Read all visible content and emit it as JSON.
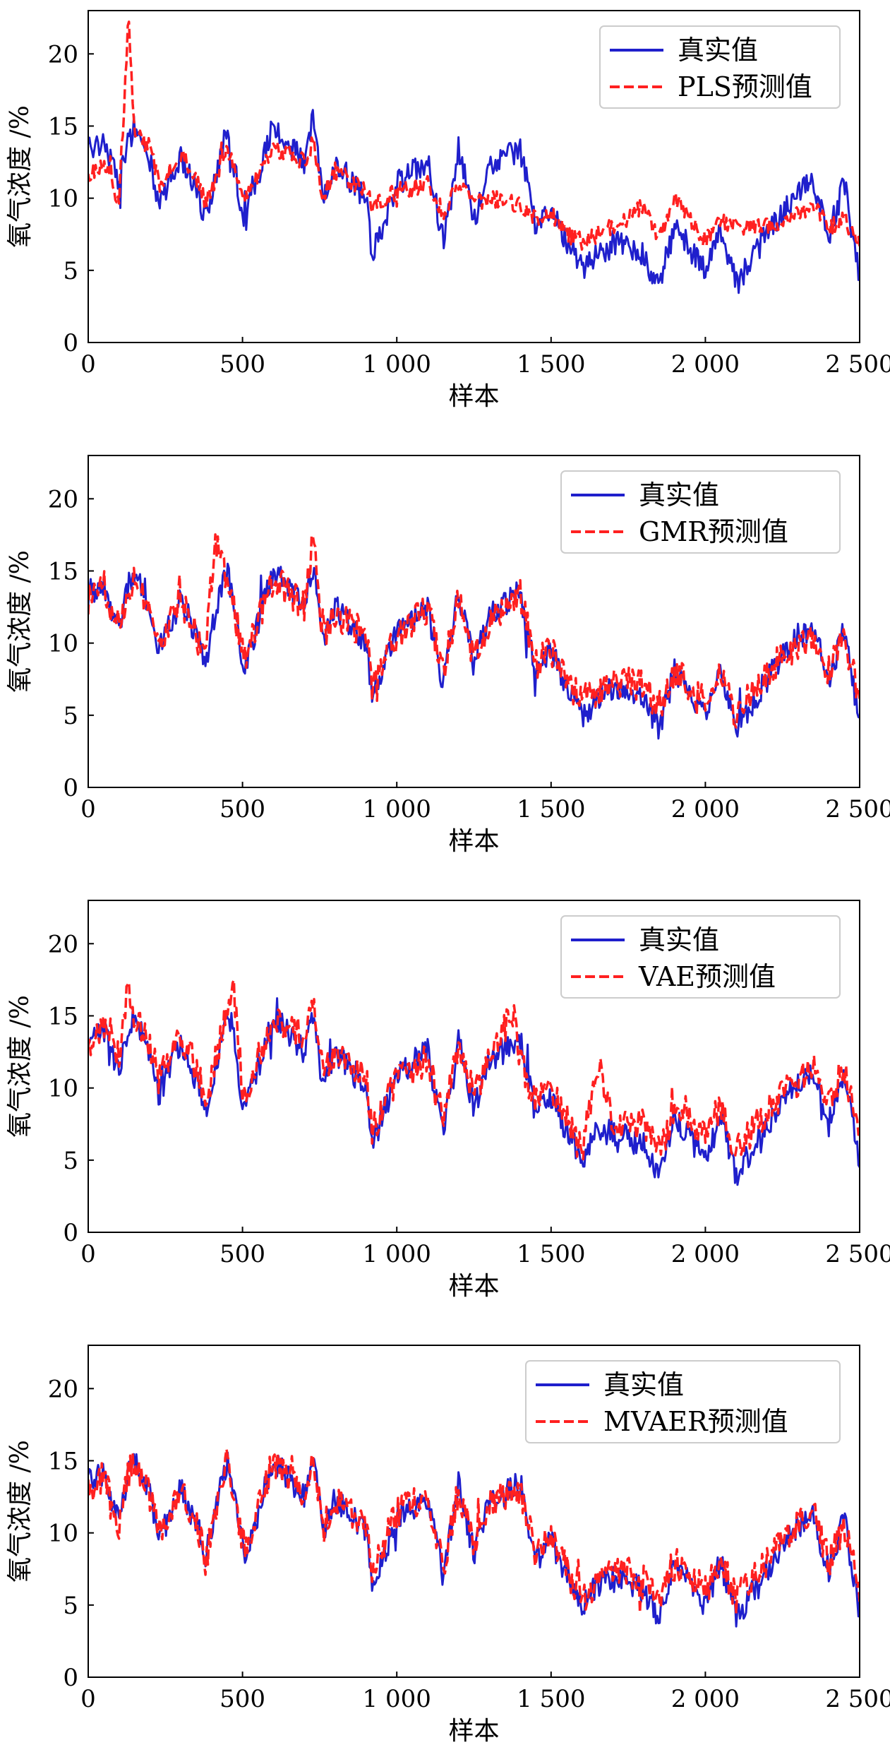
{
  "figure": {
    "panels": [
      {
        "legend_true": "真实值",
        "legend_pred": "PLS预测值"
      },
      {
        "legend_true": "真实值",
        "legend_pred": "GMR预测值"
      },
      {
        "legend_true": "真实值",
        "legend_pred": "VAE预测值"
      },
      {
        "legend_true": "真实值",
        "legend_pred": "MVAER预测值"
      }
    ]
  },
  "chart_data": [
    {
      "type": "line",
      "xlabel": "样本",
      "ylabel": "氧气浓度 /%",
      "xlim": [
        0,
        2500
      ],
      "ylim": [
        0,
        23
      ],
      "xticks": [
        0,
        500,
        1000,
        1500,
        2000,
        2500
      ],
      "xtick_labels": [
        "0",
        "500",
        "1 000",
        "1 500",
        "2 000",
        "2 500"
      ],
      "yticks": [
        0,
        5,
        10,
        15,
        20
      ],
      "ytick_labels": [
        "0",
        "5",
        "10",
        "15",
        "20"
      ],
      "legend": "top-right",
      "colors": {
        "true": "#1f1fcc",
        "pred": "#ff2020"
      },
      "x": [
        0,
        50,
        100,
        130,
        150,
        200,
        230,
        300,
        360,
        380,
        450,
        500,
        510,
        600,
        700,
        730,
        760,
        800,
        900,
        920,
        1000,
        1100,
        1150,
        1200,
        1250,
        1300,
        1400,
        1450,
        1500,
        1550,
        1600,
        1700,
        1800,
        1850,
        1900,
        2000,
        2050,
        2100,
        2200,
        2300,
        2350,
        2400,
        2450,
        2500
      ],
      "series": [
        {
          "name": "真实值",
          "values": [
            13.5,
            14,
            11,
            14,
            15,
            12.5,
            9.5,
            13,
            10,
            8.5,
            15,
            9,
            8.5,
            15,
            12.5,
            15.5,
            10,
            12.5,
            10,
            6,
            11,
            12.5,
            7,
            13.5,
            8.5,
            12,
            13.5,
            8,
            9.5,
            7,
            5,
            7,
            6,
            4,
            8,
            5,
            8,
            4,
            7.5,
            10.5,
            11,
            7.5,
            11,
            4.5
          ]
        },
        {
          "name": "PLS预测值",
          "values": [
            11.5,
            12.5,
            9.5,
            22.5,
            14.5,
            13.5,
            11,
            13,
            11,
            9.5,
            13.5,
            10.5,
            10,
            13.5,
            12.5,
            14,
            10,
            12,
            10.5,
            9.5,
            10.5,
            11,
            9,
            11,
            9.5,
            10,
            9.5,
            8.5,
            9,
            7.5,
            7,
            8,
            9.5,
            7,
            10,
            7,
            8.5,
            8,
            8,
            9,
            9.5,
            8,
            8.5,
            7
          ]
        }
      ]
    },
    {
      "type": "line",
      "xlabel": "样本",
      "ylabel": "氧气浓度 /%",
      "xlim": [
        0,
        2500
      ],
      "ylim": [
        0,
        23
      ],
      "xticks": [
        0,
        500,
        1000,
        1500,
        2000,
        2500
      ],
      "xtick_labels": [
        "0",
        "500",
        "1 000",
        "1 500",
        "2 000",
        "2 500"
      ],
      "yticks": [
        0,
        5,
        10,
        15,
        20
      ],
      "ytick_labels": [
        "0",
        "5",
        "10",
        "15",
        "20"
      ],
      "legend": "top-right",
      "colors": {
        "true": "#1f1fcc",
        "pred": "#ff2020"
      },
      "x": [
        0,
        50,
        100,
        130,
        150,
        200,
        230,
        300,
        360,
        380,
        410,
        450,
        500,
        510,
        600,
        700,
        730,
        760,
        800,
        900,
        920,
        1000,
        1100,
        1150,
        1200,
        1250,
        1300,
        1400,
        1450,
        1500,
        1550,
        1600,
        1700,
        1800,
        1850,
        1900,
        2000,
        2050,
        2100,
        2200,
        2300,
        2350,
        2400,
        2450,
        2500
      ],
      "series": [
        {
          "name": "真实值",
          "values": [
            13.5,
            14,
            11,
            14,
            15,
            12.5,
            9.5,
            13,
            10,
            8.5,
            12,
            15,
            9,
            8.5,
            15,
            12.5,
            15.5,
            10,
            12.5,
            10,
            6,
            11,
            12.5,
            7,
            13.5,
            8.5,
            12,
            13.5,
            8,
            9.5,
            7,
            5,
            7,
            6,
            4,
            8,
            5,
            8,
            4,
            7.5,
            10.5,
            11,
            7.5,
            11,
            4.5
          ]
        },
        {
          "name": "GMR预测值",
          "values": [
            13,
            14,
            11.5,
            13.5,
            14.5,
            12.5,
            10,
            13,
            10,
            9,
            17,
            14.5,
            9.5,
            9,
            14.5,
            12.5,
            17.5,
            10.5,
            12,
            10.5,
            7,
            10.5,
            12.5,
            8,
            13,
            9,
            11.5,
            13.5,
            8.5,
            9.5,
            7.5,
            6,
            7.5,
            7,
            5.5,
            8,
            6,
            8,
            5,
            8,
            10,
            10.5,
            8,
            10.5,
            6
          ]
        }
      ]
    },
    {
      "type": "line",
      "xlabel": "样本",
      "ylabel": "氧气浓度 /%",
      "xlim": [
        0,
        2500
      ],
      "ylim": [
        0,
        23
      ],
      "xticks": [
        0,
        500,
        1000,
        1500,
        2000,
        2500
      ],
      "xtick_labels": [
        "0",
        "500",
        "1 000",
        "1 500",
        "2 000",
        "2 500"
      ],
      "yticks": [
        0,
        5,
        10,
        15,
        20
      ],
      "ytick_labels": [
        "0",
        "5",
        "10",
        "15",
        "20"
      ],
      "legend": "top-right",
      "colors": {
        "true": "#1f1fcc",
        "pred": "#ff2020"
      },
      "x": [
        0,
        50,
        100,
        130,
        150,
        200,
        230,
        300,
        360,
        380,
        450,
        470,
        500,
        510,
        600,
        700,
        730,
        760,
        800,
        900,
        920,
        1000,
        1100,
        1150,
        1200,
        1250,
        1300,
        1380,
        1400,
        1450,
        1500,
        1550,
        1600,
        1650,
        1700,
        1800,
        1850,
        1900,
        2000,
        2050,
        2100,
        2200,
        2300,
        2350,
        2400,
        2450,
        2500
      ],
      "series": [
        {
          "name": "真实值",
          "values": [
            13.5,
            14,
            11,
            14,
            15,
            12.5,
            9.5,
            13,
            10,
            8.5,
            15,
            14,
            9,
            8.5,
            15,
            12.5,
            15.5,
            10,
            12.5,
            10,
            6,
            11,
            12.5,
            7,
            13.5,
            8.5,
            12,
            13,
            13.5,
            8,
            9.5,
            7,
            5,
            7,
            7,
            6,
            4,
            8,
            5,
            8,
            4,
            7.5,
            10.5,
            11,
            7.5,
            11,
            4.5
          ]
        },
        {
          "name": "VAE预测值",
          "values": [
            13,
            14,
            12,
            17,
            15,
            13,
            10.5,
            13.5,
            11,
            9,
            15.5,
            17,
            10,
            9.5,
            15,
            13.5,
            16.5,
            11,
            12.5,
            11,
            7,
            10.5,
            12,
            8,
            13,
            9.5,
            12,
            15.5,
            12,
            9,
            10,
            8,
            5.5,
            12,
            7.5,
            7.5,
            5.5,
            8.5,
            7,
            8.5,
            5.5,
            8.5,
            10.5,
            11.5,
            9,
            11.5,
            6
          ]
        }
      ]
    },
    {
      "type": "line",
      "xlabel": "样本",
      "ylabel": "氧气浓度 /%",
      "xlim": [
        0,
        2500
      ],
      "ylim": [
        0,
        23
      ],
      "xticks": [
        0,
        500,
        1000,
        1500,
        2000,
        2500
      ],
      "xtick_labels": [
        "0",
        "500",
        "1 000",
        "1 500",
        "2 000",
        "2 500"
      ],
      "yticks": [
        0,
        5,
        10,
        15,
        20
      ],
      "ytick_labels": [
        "0",
        "5",
        "10",
        "15",
        "20"
      ],
      "legend": "top-right",
      "colors": {
        "true": "#1f1fcc",
        "pred": "#ff2020"
      },
      "x": [
        0,
        50,
        100,
        130,
        150,
        200,
        230,
        300,
        360,
        380,
        450,
        500,
        510,
        600,
        700,
        730,
        760,
        800,
        900,
        920,
        1000,
        1100,
        1150,
        1200,
        1250,
        1300,
        1400,
        1450,
        1500,
        1550,
        1600,
        1700,
        1800,
        1850,
        1900,
        2000,
        2050,
        2100,
        2200,
        2300,
        2350,
        2400,
        2450,
        2500
      ],
      "series": [
        {
          "name": "真实值",
          "values": [
            13.5,
            14,
            11,
            14,
            15,
            12.5,
            9.5,
            13,
            10,
            8.5,
            15,
            9,
            8.5,
            15,
            12.5,
            15.5,
            10,
            12.5,
            10,
            6,
            11,
            12.5,
            7,
            13.5,
            8.5,
            12,
            13.5,
            8,
            9.5,
            7,
            5,
            7,
            6,
            4,
            8,
            5,
            8,
            4,
            7.5,
            10.5,
            11,
            7.5,
            11,
            4.5
          ]
        },
        {
          "name": "MVAER预测值",
          "values": [
            13,
            14,
            10.5,
            14,
            15,
            12.5,
            10,
            13,
            10,
            8,
            15.5,
            9.5,
            9,
            15,
            12.5,
            15.5,
            10,
            12.5,
            10.5,
            7,
            11.5,
            12.5,
            7.5,
            13,
            9,
            12,
            13,
            8.5,
            10,
            7.5,
            5.5,
            7.5,
            7,
            5.5,
            8,
            6,
            8,
            5.5,
            8,
            10.5,
            11.5,
            8,
            10.5,
            6
          ]
        }
      ]
    }
  ]
}
